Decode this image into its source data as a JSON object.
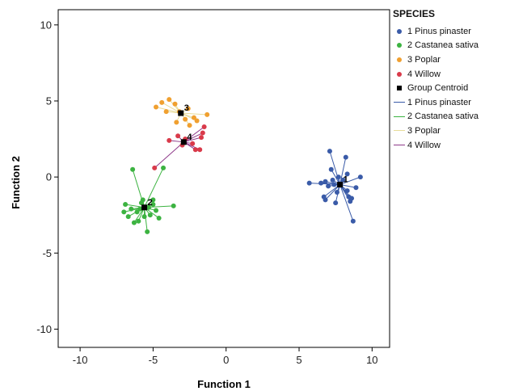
{
  "chart_data": {
    "type": "scatter",
    "xlabel": "Function 1",
    "ylabel": "Function 2",
    "xlim": [
      -11.5,
      11.2
    ],
    "ylim": [
      -11.2,
      11
    ],
    "xticks": [
      -10,
      -5,
      0,
      5,
      10
    ],
    "yticks": [
      -10,
      -5,
      0,
      5,
      10
    ],
    "tick_labels_x": [
      "-10",
      "-5",
      "0",
      "5",
      "10"
    ],
    "tick_labels_y": [
      "-10",
      "-5",
      "0",
      "5",
      "10"
    ],
    "grid": false,
    "legend_placement": "right",
    "legend_title": "SPECIES",
    "series": [
      {
        "name": "1 Pinus pinaster",
        "color": "#3a5ba8",
        "centroid": [
          7.8,
          -0.5
        ],
        "centroid_label": "1",
        "points": [
          [
            5.7,
            -0.4
          ],
          [
            6.5,
            -0.4
          ],
          [
            6.7,
            -1.3
          ],
          [
            6.8,
            -0.3
          ],
          [
            6.8,
            -1.5
          ],
          [
            7.0,
            -0.6
          ],
          [
            7.1,
            1.7
          ],
          [
            7.2,
            0.5
          ],
          [
            7.3,
            -0.2
          ],
          [
            7.4,
            -0.5
          ],
          [
            7.5,
            -1.7
          ],
          [
            7.6,
            -1.0
          ],
          [
            7.7,
            0.0
          ],
          [
            7.8,
            -0.5
          ],
          [
            8.0,
            -0.2
          ],
          [
            8.2,
            1.3
          ],
          [
            8.3,
            0.2
          ],
          [
            8.3,
            -0.9
          ],
          [
            8.4,
            -1.3
          ],
          [
            8.5,
            -1.6
          ],
          [
            8.6,
            -1.4
          ],
          [
            8.7,
            -2.9
          ],
          [
            8.9,
            -0.7
          ],
          [
            9.2,
            0.0
          ]
        ]
      },
      {
        "name": "2 Castanea sativa",
        "color": "#3cb341",
        "centroid": [
          -5.6,
          -2.0
        ],
        "centroid_label": "2",
        "points": [
          [
            -6.9,
            -1.8
          ],
          [
            -7.0,
            -2.3
          ],
          [
            -6.7,
            -2.6
          ],
          [
            -6.5,
            -2.1
          ],
          [
            -6.4,
            0.5
          ],
          [
            -6.3,
            -3.0
          ],
          [
            -6.1,
            -2.3
          ],
          [
            -6.0,
            -2.9
          ],
          [
            -5.9,
            -2.1
          ],
          [
            -5.8,
            -1.7
          ],
          [
            -5.7,
            -1.5
          ],
          [
            -5.6,
            -2.6
          ],
          [
            -5.4,
            -3.6
          ],
          [
            -5.3,
            -2.0
          ],
          [
            -5.2,
            -2.5
          ],
          [
            -5.0,
            -1.8
          ],
          [
            -5.0,
            -1.5
          ],
          [
            -4.8,
            -2.2
          ],
          [
            -4.6,
            -2.7
          ],
          [
            -4.3,
            0.6
          ],
          [
            -3.6,
            -1.9
          ]
        ]
      },
      {
        "name": "3 Poplar",
        "color": "#f0a030",
        "centroid": [
          -3.1,
          4.2
        ],
        "centroid_label": "3",
        "points": [
          [
            -4.8,
            4.6
          ],
          [
            -4.4,
            4.9
          ],
          [
            -4.1,
            4.3
          ],
          [
            -3.9,
            5.1
          ],
          [
            -3.5,
            4.8
          ],
          [
            -3.4,
            3.6
          ],
          [
            -3.2,
            4.3
          ],
          [
            -2.8,
            3.8
          ],
          [
            -2.6,
            4.5
          ],
          [
            -2.5,
            3.4
          ],
          [
            -2.2,
            3.9
          ],
          [
            -2.0,
            3.7
          ],
          [
            -1.3,
            4.1
          ]
        ]
      },
      {
        "name": "4 Willow",
        "color": "#d93a4a",
        "centroid": [
          -2.9,
          2.3
        ],
        "centroid_label": "4",
        "points": [
          [
            -4.9,
            0.6
          ],
          [
            -3.9,
            2.4
          ],
          [
            -3.3,
            2.7
          ],
          [
            -3.0,
            2.1
          ],
          [
            -2.8,
            2.5
          ],
          [
            -2.3,
            2.2
          ],
          [
            -2.1,
            1.8
          ],
          [
            -1.8,
            1.8
          ],
          [
            -1.7,
            2.6
          ],
          [
            -1.6,
            2.9
          ],
          [
            -1.5,
            3.3
          ]
        ]
      }
    ],
    "legend_items": [
      {
        "label": "1 Pinus pinaster",
        "symbol": "dot",
        "color": "#3a5ba8"
      },
      {
        "label": "2 Castanea sativa",
        "symbol": "dot",
        "color": "#3cb341"
      },
      {
        "label": "3 Poplar",
        "symbol": "dot",
        "color": "#f0a030"
      },
      {
        "label": "4 Willow",
        "symbol": "dot",
        "color": "#d93a4a"
      },
      {
        "label": "Group Centroid",
        "symbol": "square",
        "color": "#000000"
      },
      {
        "label": "1 Pinus pinaster",
        "symbol": "line",
        "color": "#3a5ba8"
      },
      {
        "label": "2 Castanea sativa",
        "symbol": "line",
        "color": "#3cb341"
      },
      {
        "label": "3 Poplar",
        "symbol": "line",
        "color": "#e8dc9a"
      },
      {
        "label": "4 Willow",
        "symbol": "line",
        "color": "#8e3a8a"
      }
    ],
    "connector_colors": [
      "#3a5ba8",
      "#3cb341",
      "#e8dc9a",
      "#8e3a8a"
    ]
  }
}
